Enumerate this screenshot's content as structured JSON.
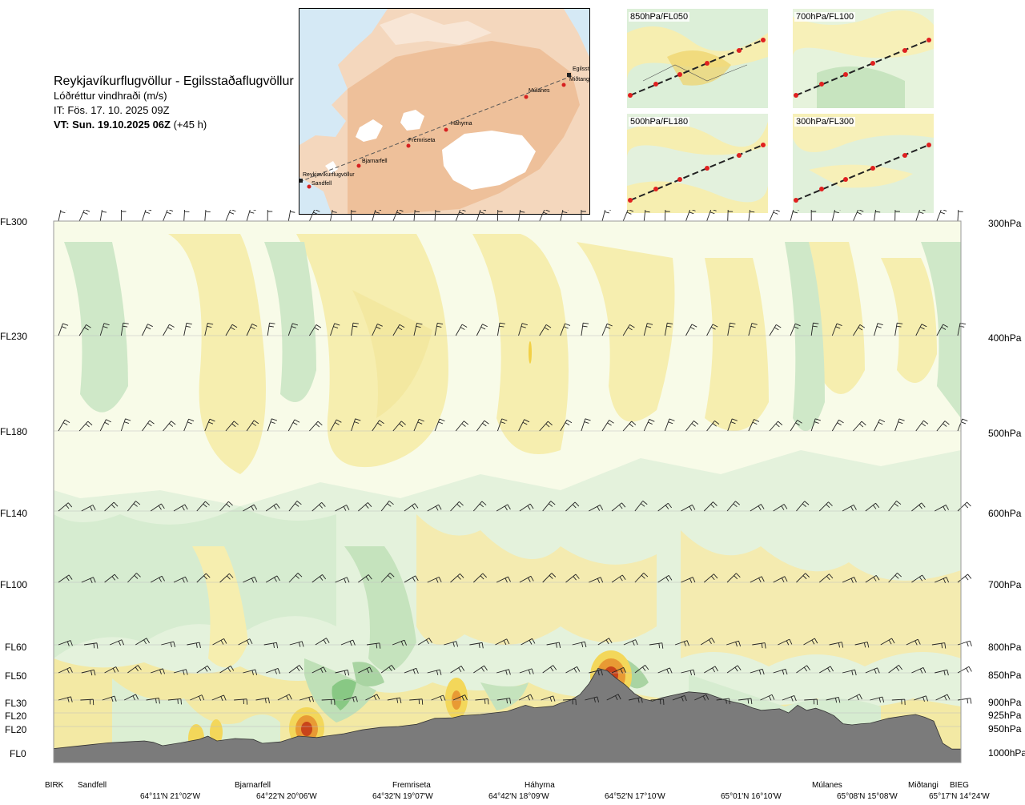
{
  "header": {
    "route": "Reykjavíkurflugvöllur - Egilsstaðaflugvöllur",
    "variable": "Lóðréttur vindhraði (m/s)",
    "issue_time": "IT: Fös. 17. 10. 2025 09Z",
    "valid_time_bold": "VT: Sun. 19.10.2025 06Z",
    "valid_time_lead": "(+45 h)"
  },
  "route_map": {
    "waypoints": [
      "Reykjavíkurflugvöllur",
      "Sandfell",
      "Bjarnarfell",
      "Fremriseta",
      "Háhyrna",
      "Múlanes",
      "Egilsst",
      "Miðtangi"
    ]
  },
  "level_maps": [
    {
      "label": "850hPa/FL050"
    },
    {
      "label": "700hPa/FL100"
    },
    {
      "label": "500hPa/FL180"
    },
    {
      "label": "300hPa/FL300"
    }
  ],
  "chart_data": {
    "type": "heatmap",
    "title": "Lóðréttur vindhraði (m/s)",
    "left_axis_labels": [
      "FL300",
      "FL230",
      "FL180",
      "FL140",
      "FL100",
      "FL60",
      "FL50",
      "FL30",
      "FL20",
      "FL20",
      "FL0"
    ],
    "right_axis_labels": [
      "300hPa",
      "400hPa",
      "500hPa",
      "600hPa",
      "700hPa",
      "800hPa",
      "850hPa",
      "900hPa",
      "925hPa",
      "950hPa",
      "1000hPa"
    ],
    "pressure_levels_hPa": [
      300,
      400,
      500,
      600,
      700,
      800,
      850,
      900,
      925,
      950,
      1000
    ],
    "stations": [
      "BIRK",
      "Sandfell",
      "Bjarnarfell",
      "Fremriseta",
      "Háhyrna",
      "Miðtangi",
      "Múlanes",
      "BIEG"
    ],
    "coordinates": [
      "64°11'N 21°02'W",
      "64°22'N 20°06'W",
      "64°32'N 19°07'W",
      "64°42'N 18°09'W",
      "64°52'N 17°10'W",
      "65°01'N 16°10'W",
      "65°08'N 15°08'W",
      "65°17'N 14°24'W"
    ],
    "terrain_profile_hPa": [
      [
        0,
        996
      ],
      [
        0.02,
        992
      ],
      [
        0.04,
        988
      ],
      [
        0.06,
        984
      ],
      [
        0.08,
        982
      ],
      [
        0.1,
        980
      ],
      [
        0.11,
        983
      ],
      [
        0.12,
        990
      ],
      [
        0.14,
        984
      ],
      [
        0.16,
        977
      ],
      [
        0.17,
        970
      ],
      [
        0.18,
        980
      ],
      [
        0.2,
        975
      ],
      [
        0.22,
        977
      ],
      [
        0.23,
        985
      ],
      [
        0.25,
        982
      ],
      [
        0.27,
        970
      ],
      [
        0.29,
        973
      ],
      [
        0.3,
        970
      ],
      [
        0.32,
        965
      ],
      [
        0.34,
        957
      ],
      [
        0.36,
        952
      ],
      [
        0.38,
        950
      ],
      [
        0.4,
        946
      ],
      [
        0.42,
        935
      ],
      [
        0.44,
        934
      ],
      [
        0.45,
        930
      ],
      [
        0.47,
        928
      ],
      [
        0.49,
        924
      ],
      [
        0.5,
        922
      ],
      [
        0.52,
        910
      ],
      [
        0.53,
        915
      ],
      [
        0.55,
        912
      ],
      [
        0.56,
        905
      ],
      [
        0.57,
        900
      ],
      [
        0.58,
        890
      ],
      [
        0.59,
        870
      ],
      [
        0.6,
        842
      ],
      [
        0.61,
        846
      ],
      [
        0.62,
        860
      ],
      [
        0.63,
        872
      ],
      [
        0.64,
        888
      ],
      [
        0.65,
        898
      ],
      [
        0.66,
        902
      ],
      [
        0.67,
        896
      ],
      [
        0.68,
        892
      ],
      [
        0.7,
        885
      ],
      [
        0.72,
        888
      ],
      [
        0.74,
        900
      ],
      [
        0.76,
        908
      ],
      [
        0.77,
        915
      ],
      [
        0.78,
        920
      ],
      [
        0.8,
        917
      ],
      [
        0.81,
        925
      ],
      [
        0.82,
        910
      ],
      [
        0.83,
        920
      ],
      [
        0.84,
        916
      ],
      [
        0.85,
        922
      ],
      [
        0.86,
        930
      ],
      [
        0.87,
        945
      ],
      [
        0.88,
        947
      ],
      [
        0.89,
        945
      ],
      [
        0.9,
        944
      ],
      [
        0.92,
        935
      ],
      [
        0.94,
        930
      ],
      [
        0.95,
        928
      ],
      [
        0.96,
        933
      ],
      [
        0.97,
        940
      ],
      [
        0.98,
        985
      ],
      [
        0.99,
        997
      ],
      [
        1,
        997
      ]
    ],
    "updraft_maxima": [
      {
        "near": "Bjarnarfell",
        "level_hPa": 960
      },
      {
        "near": "Fremriseta",
        "level_hPa": 915
      },
      {
        "near": "Háhyrna",
        "level_hPa": 860
      }
    ],
    "colors": {
      "ascent_weak": "#faf2b2",
      "ascent_moderate": "#f3e69a",
      "ascent_strong": "#f2d046",
      "ascent_max": "#e07a1e",
      "ascent_core": "#c8441a",
      "descent_weak": "#e8f4e0",
      "descent_moderate": "#c9e6c4",
      "descent_strong": "#a9d4a2",
      "descent_max": "#6db86a",
      "terrain": "#7b7b7b",
      "gridline": "#bdbdbd"
    },
    "grid": true
  }
}
